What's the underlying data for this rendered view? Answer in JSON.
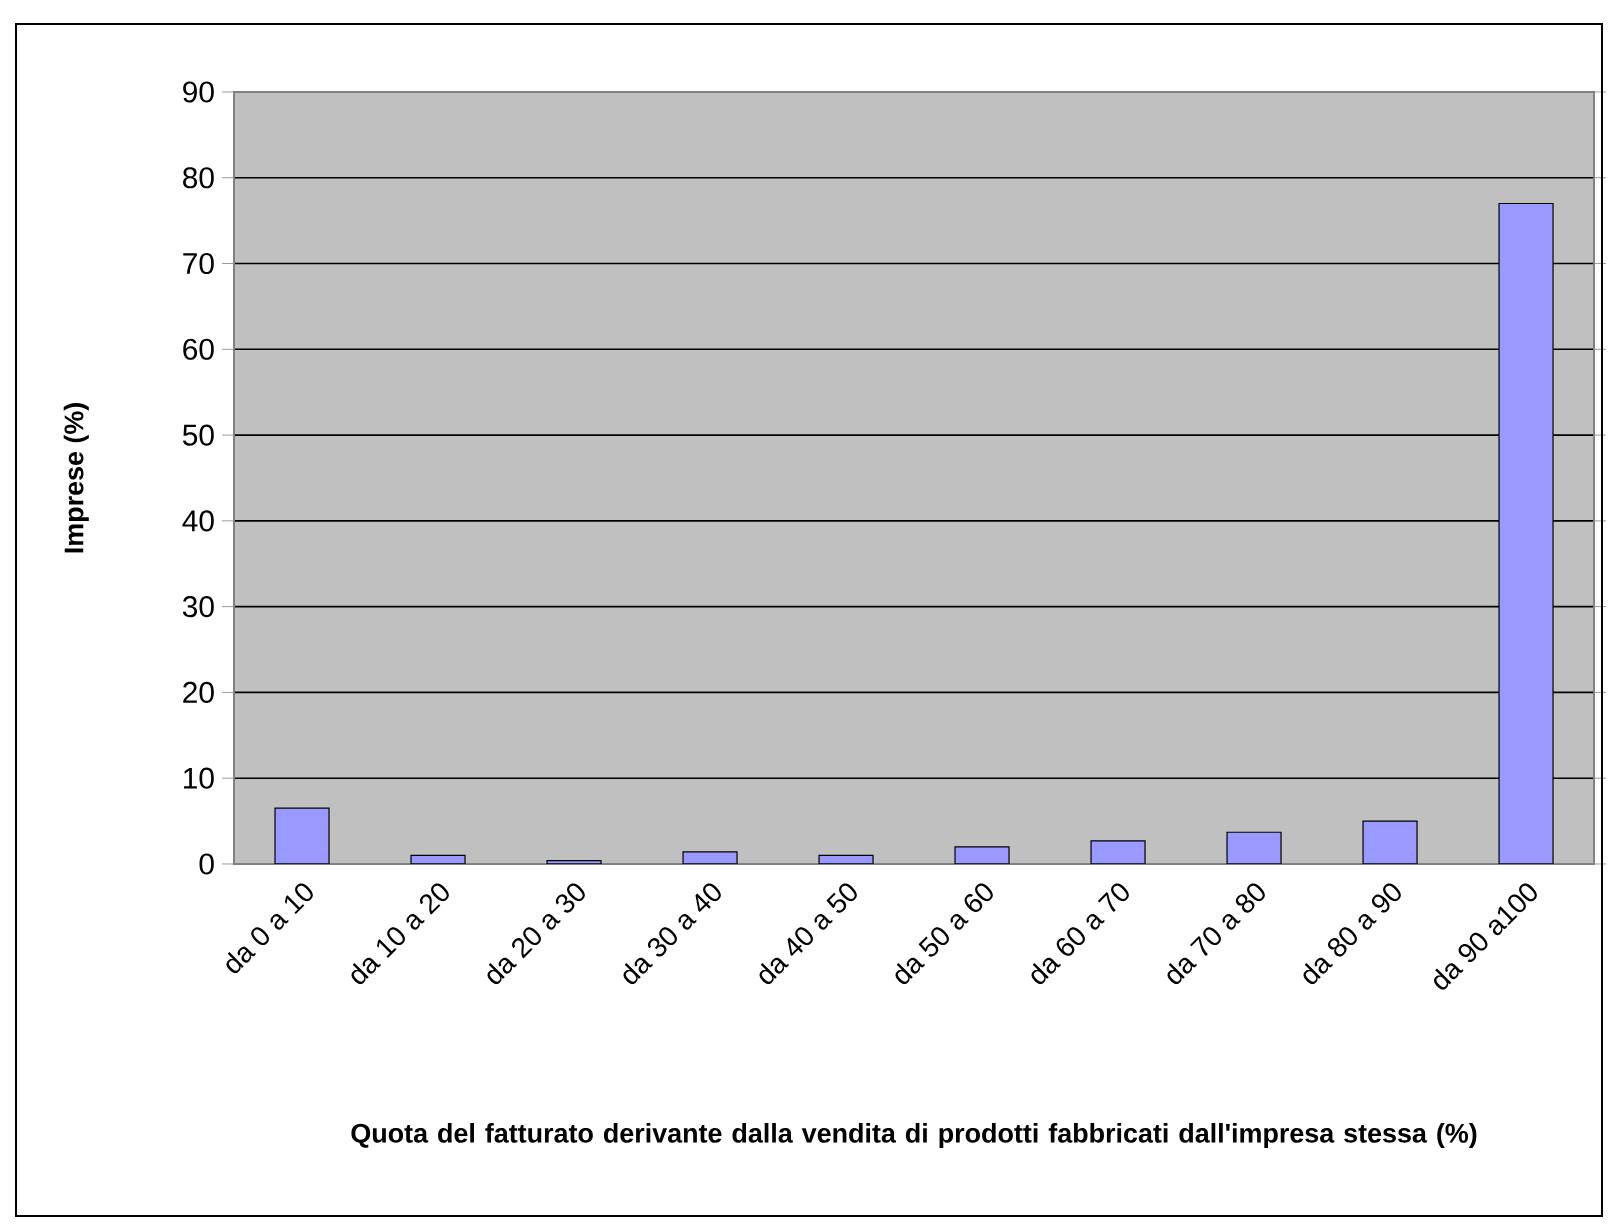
{
  "chart_data": {
    "type": "bar",
    "categories": [
      "da 0 a 10",
      "da 10 a 20",
      "da 20 a 30",
      "da 30 a 40",
      "da 40 a 50",
      "da 50 a 60",
      "da 60 a 70",
      "da 70 a 80",
      "da 80 a 90",
      "da 90 a100"
    ],
    "values": [
      6.5,
      1.0,
      0.4,
      1.4,
      1.0,
      2.0,
      2.7,
      3.7,
      5.0,
      77
    ],
    "color": "#9999ff",
    "ylim": [
      0,
      90
    ],
    "yticks": [
      0,
      10,
      20,
      30,
      40,
      50,
      60,
      70,
      80,
      90
    ],
    "grid": "y",
    "xlabel": "Quota del fatturato derivante dalla vendita di prodotti fabbricati dall'impresa stessa (%)",
    "ylabel": "Imprese (%)"
  }
}
